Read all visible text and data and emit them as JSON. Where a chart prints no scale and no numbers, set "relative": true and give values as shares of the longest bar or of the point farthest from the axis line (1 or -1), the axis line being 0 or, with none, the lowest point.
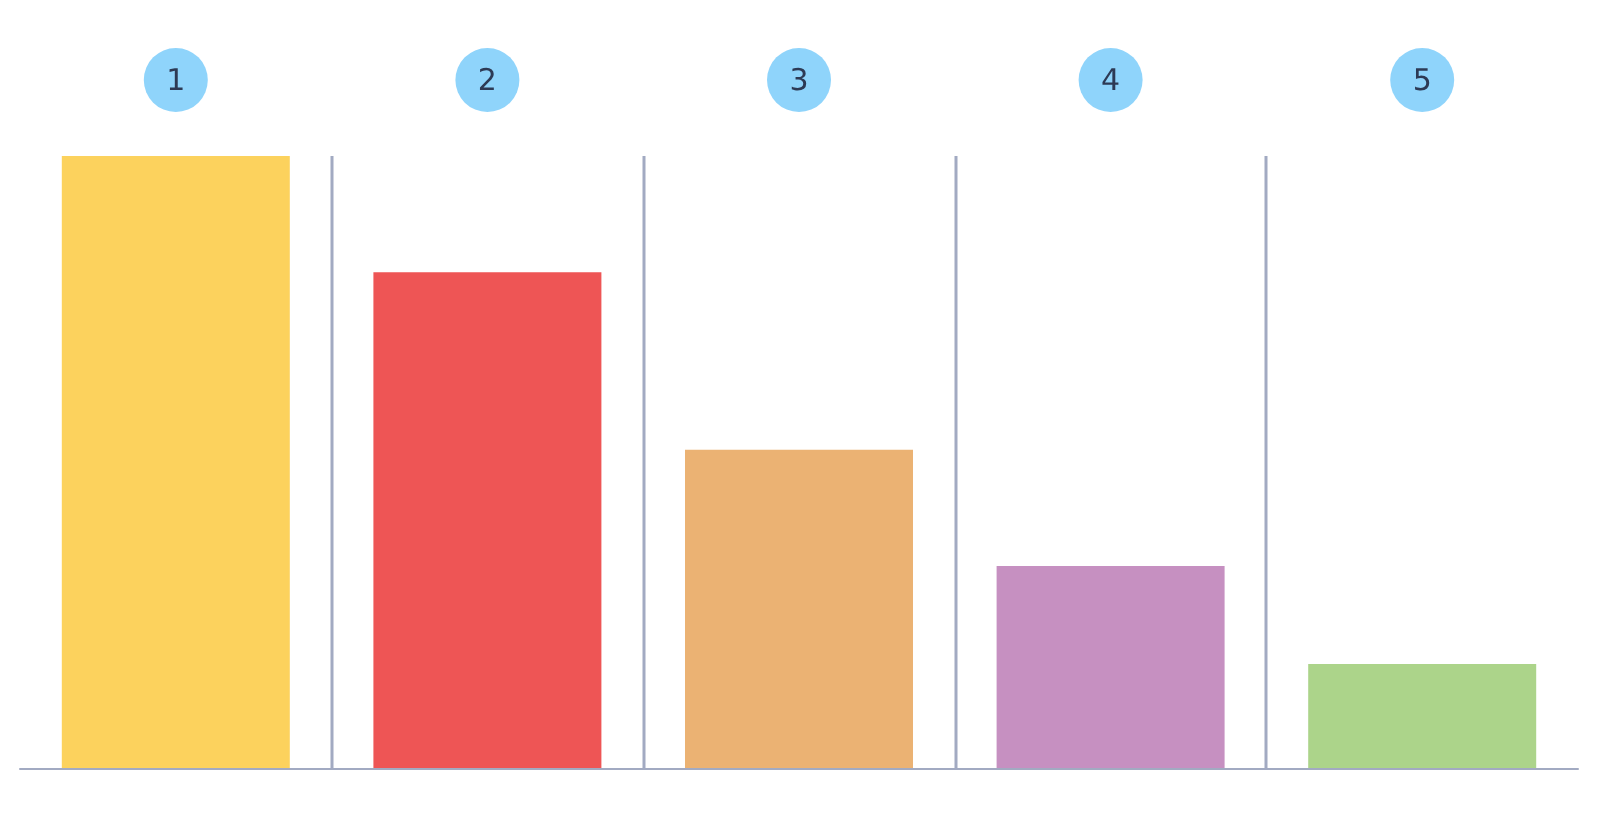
{
  "chart_data": {
    "type": "bar",
    "categories": [
      "1",
      "2",
      "3",
      "4",
      "5"
    ],
    "values": [
      1,
      0.81,
      0.52,
      0.33,
      0.17
    ],
    "colors": [
      "#fcd25d",
      "#ee5555",
      "#ebb273",
      "#c690c1",
      "#acd48a"
    ],
    "relative": true,
    "grid": "x"
  }
}
